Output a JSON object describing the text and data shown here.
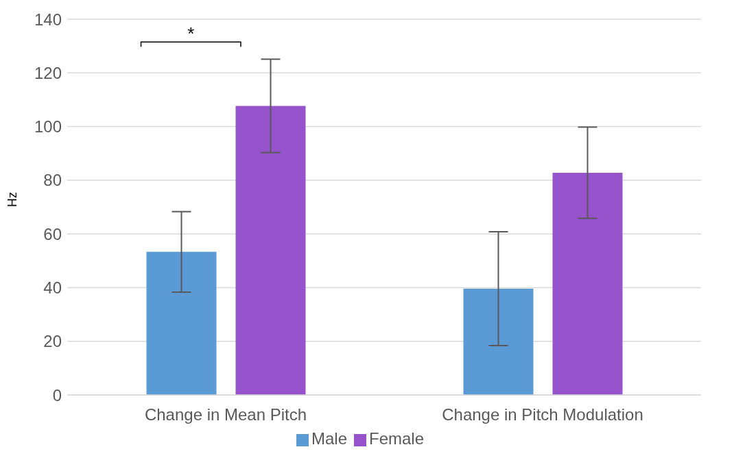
{
  "chart_data": {
    "type": "bar",
    "categories": [
      "Change in Mean Pitch",
      "Change in Pitch Modulation"
    ],
    "ylabel": "Hz",
    "ylim": [
      0,
      140
    ],
    "yticks": [
      0,
      20,
      40,
      60,
      80,
      100,
      120,
      140
    ],
    "grid": "y",
    "legend": "bottom",
    "series": [
      {
        "name": "Male",
        "color": "#5b9bd5",
        "values": [
          53.3,
          39.6
        ],
        "errors": [
          15,
          21.2
        ]
      },
      {
        "name": "Female",
        "color": "#9653cc",
        "values": [
          107.7,
          82.8
        ],
        "errors": [
          17.4,
          17
        ]
      }
    ],
    "annotations": [
      "*"
    ]
  }
}
